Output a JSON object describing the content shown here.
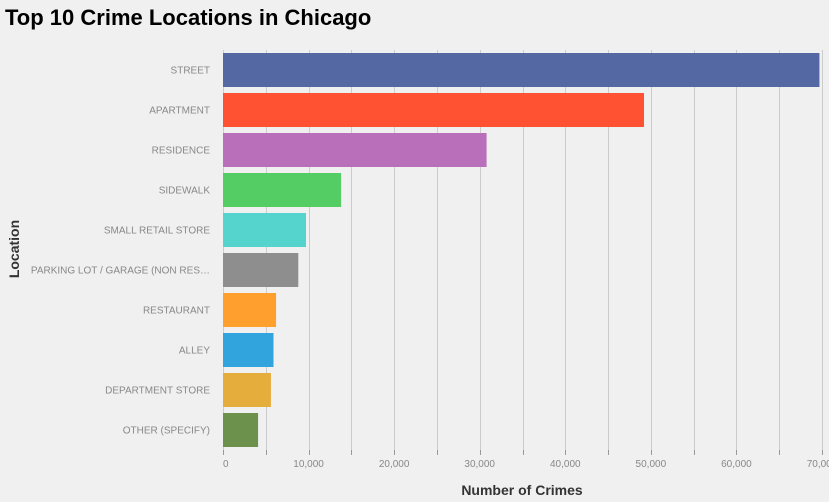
{
  "chart_data": {
    "type": "bar",
    "orientation": "horizontal",
    "title": "Top 10 Crime Locations in Chicago",
    "xlabel": "Number of Crimes",
    "ylabel": "Location",
    "xlim": [
      0,
      70000
    ],
    "x_ticks": [
      0,
      10000,
      20000,
      30000,
      40000,
      50000,
      60000,
      70000
    ],
    "x_tick_labels": [
      "0",
      "10,000",
      "20,000",
      "30,000",
      "40,000",
      "50,000",
      "60,000",
      "70,000"
    ],
    "grid": true,
    "legend": "none",
    "categories": [
      "STREET",
      "APARTMENT",
      "RESIDENCE",
      "SIDEWALK",
      "SMALL RETAIL STORE",
      "PARKING LOT / GARAGE (NON RES…",
      "RESTAURANT",
      "ALLEY",
      "DEPARTMENT STORE",
      "OTHER (SPECIFY)"
    ],
    "values": [
      69700,
      49200,
      30800,
      13800,
      9700,
      8800,
      6200,
      5900,
      5600,
      4100
    ],
    "colors": [
      "#5469a3",
      "#ff5233",
      "#b96fba",
      "#54ce64",
      "#54d4cd",
      "#8e8e8e",
      "#ffa02e",
      "#31a3dd",
      "#e5ad3b",
      "#6b914c"
    ]
  }
}
